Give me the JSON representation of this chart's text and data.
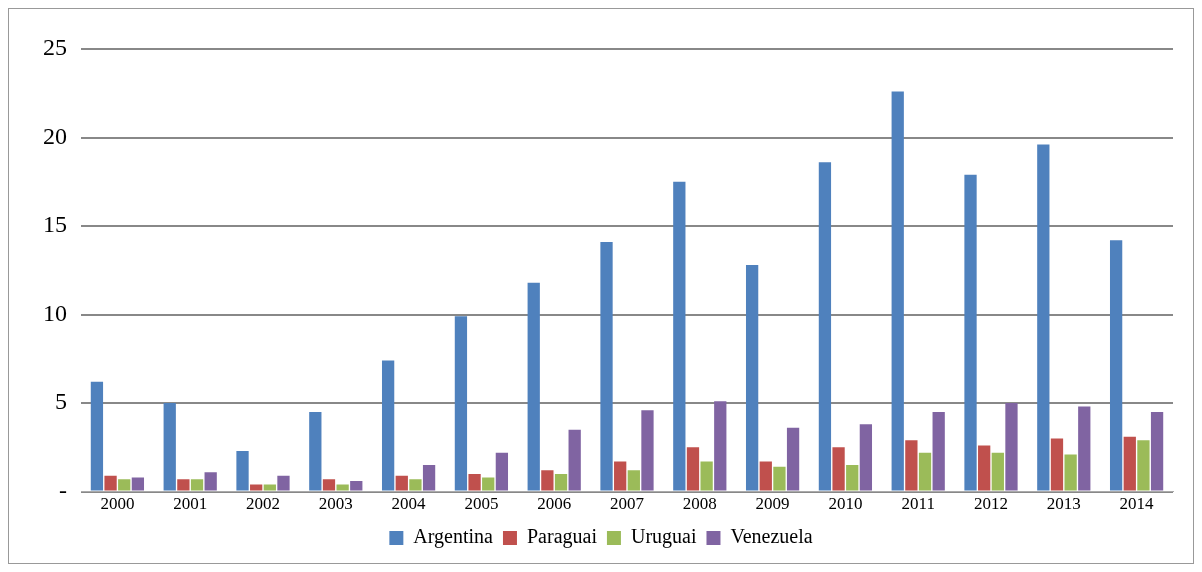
{
  "chart_data": {
    "type": "bar",
    "categories": [
      "2000",
      "2001",
      "2002",
      "2003",
      "2004",
      "2005",
      "2006",
      "2007",
      "2008",
      "2009",
      "2010",
      "2011",
      "2012",
      "2013",
      "2014"
    ],
    "series": [
      {
        "name": "Argentina",
        "color": "#4f81bd",
        "values": [
          6.2,
          5.0,
          2.3,
          4.5,
          7.4,
          9.9,
          11.8,
          14.1,
          17.5,
          12.8,
          18.6,
          22.6,
          17.9,
          19.6,
          14.2
        ]
      },
      {
        "name": "Paraguai",
        "color": "#c0504d",
        "values": [
          0.9,
          0.7,
          0.4,
          0.7,
          0.9,
          1.0,
          1.2,
          1.7,
          2.5,
          1.7,
          2.5,
          2.9,
          2.6,
          3.0,
          3.1
        ]
      },
      {
        "name": "Uruguai",
        "color": "#9bbb59",
        "values": [
          0.7,
          0.7,
          0.4,
          0.4,
          0.7,
          0.8,
          1.0,
          1.2,
          1.7,
          1.4,
          1.5,
          2.2,
          2.2,
          2.1,
          2.9
        ]
      },
      {
        "name": "Venezuela",
        "color": "#8064a2",
        "values": [
          0.8,
          1.1,
          0.9,
          0.6,
          1.5,
          2.2,
          3.5,
          4.6,
          5.1,
          3.6,
          3.8,
          4.5,
          5.0,
          4.8,
          4.5
        ]
      }
    ],
    "ylim": [
      0,
      25
    ],
    "yticks": [
      {
        "value": 0,
        "label": "-"
      },
      5,
      10,
      15,
      20,
      25
    ],
    "grid": "y",
    "legend": "bottom"
  }
}
